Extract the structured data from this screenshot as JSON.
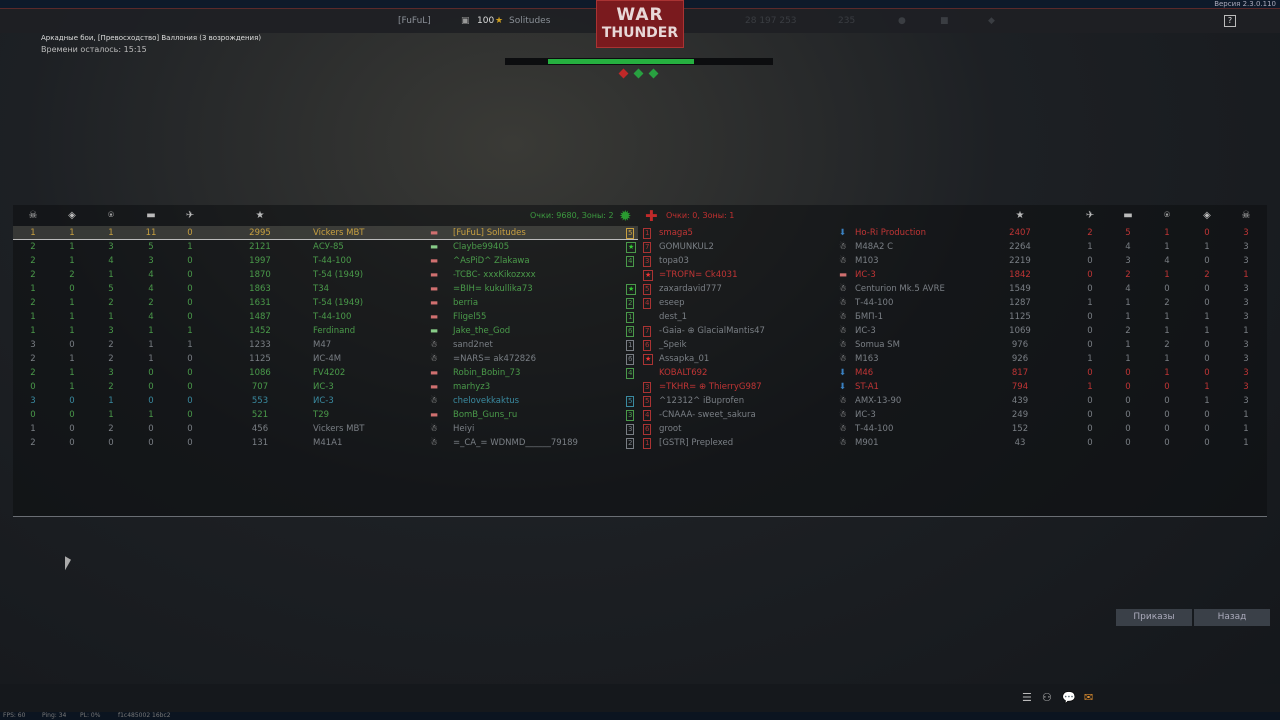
{
  "version": "Версия 2.3.0.110",
  "nav": {
    "squad": "[FuFuL]",
    "level": "100",
    "nick": "Solitudes",
    "silver": "28 197 253",
    "gold": "235",
    "help": "?"
  },
  "logo": {
    "line1": "WAR",
    "line2": "THUNDER"
  },
  "battle": {
    "mode": "Аркадные бои, [Превосходство] Валлония (3 возрождения)",
    "time_left": "Времени осталось: 15:15",
    "progress_percent": 68,
    "zones": [
      {
        "owner": "enemy",
        "color": "#c02828"
      },
      {
        "owner": "ally",
        "color": "#28a040"
      },
      {
        "owner": "ally",
        "color": "#28a040"
      }
    ]
  },
  "colors": {
    "ally": "#4a9a4a",
    "enemy": "#c03535",
    "self": "#c8a040",
    "dead": "#7a7f85",
    "squad": "#3a8aa0"
  },
  "headers": {
    "left": [
      "skull-icon",
      "capture-icon",
      "assist-icon",
      "ground-kill-icon",
      "air-kill-icon",
      "score-star-icon"
    ],
    "glyphs": [
      "☠",
      "◈",
      "⍟",
      "▬",
      "✈",
      "★"
    ]
  },
  "ally": {
    "summary": "Очки: 9680, Зоны: 2",
    "rows": [
      {
        "deaths": "1",
        "caps": "1",
        "assists": "1",
        "ground": "11",
        "air": "0",
        "score": "2995",
        "vehicle": "Vickers MBT",
        "status": "tank",
        "name": "[FuFuL] Solitudes",
        "rank": "5",
        "state": "self"
      },
      {
        "deaths": "2",
        "caps": "1",
        "assists": "3",
        "ground": "5",
        "air": "1",
        "score": "2121",
        "vehicle": "АСУ-85",
        "status": "tank-td",
        "name": "Claybe99405",
        "rank": "★",
        "state": "alive"
      },
      {
        "deaths": "2",
        "caps": "1",
        "assists": "4",
        "ground": "3",
        "air": "0",
        "score": "1997",
        "vehicle": "Т-44-100",
        "status": "tank",
        "name": "^AsPiD^ Zlakawa",
        "rank": "4",
        "state": "alive"
      },
      {
        "deaths": "2",
        "caps": "2",
        "assists": "1",
        "ground": "4",
        "air": "0",
        "score": "1870",
        "vehicle": "Т-54 (1949)",
        "status": "tank",
        "name": "-TCBC- xxxKikozxxx",
        "rank": "",
        "state": "alive"
      },
      {
        "deaths": "1",
        "caps": "0",
        "assists": "5",
        "ground": "4",
        "air": "0",
        "score": "1863",
        "vehicle": "Т34",
        "status": "tank",
        "name": "=BIH= kukullika73",
        "rank": "★",
        "state": "alive"
      },
      {
        "deaths": "2",
        "caps": "1",
        "assists": "2",
        "ground": "2",
        "air": "0",
        "score": "1631",
        "vehicle": "Т-54 (1949)",
        "status": "tank",
        "name": "berria",
        "rank": "2",
        "state": "alive"
      },
      {
        "deaths": "1",
        "caps": "1",
        "assists": "1",
        "ground": "4",
        "air": "0",
        "score": "1487",
        "vehicle": "Т-44-100",
        "status": "tank",
        "name": "Fligel55",
        "rank": "1",
        "state": "alive"
      },
      {
        "deaths": "1",
        "caps": "1",
        "assists": "3",
        "ground": "1",
        "air": "1",
        "score": "1452",
        "vehicle": "Ferdinand",
        "status": "tank-td",
        "name": "Jake_the_God",
        "rank": "6",
        "state": "alive"
      },
      {
        "deaths": "3",
        "caps": "0",
        "assists": "2",
        "ground": "1",
        "air": "1",
        "score": "1233",
        "vehicle": "M47",
        "status": "dead",
        "name": "sand2net",
        "rank": "1",
        "state": "dead"
      },
      {
        "deaths": "2",
        "caps": "1",
        "assists": "2",
        "ground": "1",
        "air": "0",
        "score": "1125",
        "vehicle": "ИС-4М",
        "status": "dead",
        "name": "=NARS= ak472826",
        "rank": "6",
        "state": "dead"
      },
      {
        "deaths": "2",
        "caps": "1",
        "assists": "3",
        "ground": "0",
        "air": "0",
        "score": "1086",
        "vehicle": "FV4202",
        "status": "tank",
        "name": "Robin_Bobin_73",
        "rank": "4",
        "state": "alive"
      },
      {
        "deaths": "0",
        "caps": "1",
        "assists": "2",
        "ground": "0",
        "air": "0",
        "score": "707",
        "vehicle": "ИС-3",
        "status": "tank",
        "name": "marhyz3",
        "rank": "",
        "state": "alive"
      },
      {
        "deaths": "3",
        "caps": "0",
        "assists": "1",
        "ground": "0",
        "air": "0",
        "score": "553",
        "vehicle": "ИС-3",
        "status": "dead",
        "name": "chelovekkaktus",
        "rank": "5",
        "state": "squad"
      },
      {
        "deaths": "0",
        "caps": "0",
        "assists": "1",
        "ground": "1",
        "air": "0",
        "score": "521",
        "vehicle": "T29",
        "status": "tank",
        "name": "BomB_Guns_ru",
        "rank": "3",
        "state": "alive"
      },
      {
        "deaths": "1",
        "caps": "0",
        "assists": "2",
        "ground": "0",
        "air": "0",
        "score": "456",
        "vehicle": "Vickers MBT",
        "status": "dead",
        "name": "Heiyi",
        "rank": "3",
        "state": "dead"
      },
      {
        "deaths": "2",
        "caps": "0",
        "assists": "0",
        "ground": "0",
        "air": "0",
        "score": "131",
        "vehicle": "M41A1",
        "status": "dead",
        "name": "=_CA_= WDNMD______79189",
        "rank": "2",
        "state": "dead"
      }
    ]
  },
  "enemy": {
    "summary": "Очки: 0, Зоны: 1",
    "rows": [
      {
        "rank": "1",
        "name": "smaga5",
        "status": "parachute",
        "vehicle": "Ho-Ri Production",
        "score": "2407",
        "air": "2",
        "ground": "5",
        "assists": "1",
        "caps": "0",
        "deaths": "3",
        "state": "alive"
      },
      {
        "rank": "7",
        "name": "GOMUNKUL2",
        "status": "dead",
        "vehicle": "M48A2 C",
        "score": "2264",
        "air": "1",
        "ground": "4",
        "assists": "1",
        "caps": "1",
        "deaths": "3",
        "state": "dead"
      },
      {
        "rank": "3",
        "name": "topa03",
        "status": "dead",
        "vehicle": "M103",
        "score": "2219",
        "air": "0",
        "ground": "3",
        "assists": "4",
        "caps": "0",
        "deaths": "3",
        "state": "dead"
      },
      {
        "rank": "★",
        "name": "=TROFN= Ck4031",
        "status": "tank",
        "vehicle": "ИС-3",
        "score": "1842",
        "air": "0",
        "ground": "2",
        "assists": "1",
        "caps": "2",
        "deaths": "1",
        "state": "alive"
      },
      {
        "rank": "5",
        "name": "zaxardavid777",
        "status": "dead",
        "vehicle": "Centurion Mk.5 AVRE",
        "score": "1549",
        "air": "0",
        "ground": "4",
        "assists": "0",
        "caps": "0",
        "deaths": "3",
        "state": "dead"
      },
      {
        "rank": "4",
        "name": "eseep",
        "status": "dead",
        "vehicle": "Т-44-100",
        "score": "1287",
        "air": "1",
        "ground": "1",
        "assists": "2",
        "caps": "0",
        "deaths": "3",
        "state": "dead"
      },
      {
        "rank": "",
        "name": "dest_1",
        "status": "dead",
        "vehicle": "БМП-1",
        "score": "1125",
        "air": "0",
        "ground": "1",
        "assists": "1",
        "caps": "1",
        "deaths": "3",
        "state": "dead"
      },
      {
        "rank": "7",
        "name": "-Gaia- ⊕ GlacialMantis47",
        "status": "dead",
        "vehicle": "ИС-3",
        "score": "1069",
        "air": "0",
        "ground": "2",
        "assists": "1",
        "caps": "1",
        "deaths": "1",
        "state": "dead"
      },
      {
        "rank": "6",
        "name": "_Speik",
        "status": "dead",
        "vehicle": "Somua SM",
        "score": "976",
        "air": "0",
        "ground": "1",
        "assists": "2",
        "caps": "0",
        "deaths": "3",
        "state": "dead"
      },
      {
        "rank": "★",
        "name": "Assapka_01",
        "status": "dead",
        "vehicle": "M163",
        "score": "926",
        "air": "1",
        "ground": "1",
        "assists": "1",
        "caps": "0",
        "deaths": "3",
        "state": "dead"
      },
      {
        "rank": "",
        "name": "KOBALT692",
        "status": "parachute",
        "vehicle": "M46",
        "score": "817",
        "air": "0",
        "ground": "0",
        "assists": "1",
        "caps": "0",
        "deaths": "3",
        "state": "alive"
      },
      {
        "rank": "3",
        "name": "=TKHR= ⊕ ThierryG987",
        "status": "parachute",
        "vehicle": "ST-A1",
        "score": "794",
        "air": "1",
        "ground": "0",
        "assists": "0",
        "caps": "1",
        "deaths": "3",
        "state": "alive"
      },
      {
        "rank": "5",
        "name": "^12312^ iBuprofen",
        "status": "dead",
        "vehicle": "AMX-13-90",
        "score": "439",
        "air": "0",
        "ground": "0",
        "assists": "0",
        "caps": "1",
        "deaths": "3",
        "state": "dead"
      },
      {
        "rank": "4",
        "name": "-CNAAA- sweet_sakura",
        "status": "dead",
        "vehicle": "ИС-3",
        "score": "249",
        "air": "0",
        "ground": "0",
        "assists": "0",
        "caps": "0",
        "deaths": "1",
        "state": "dead"
      },
      {
        "rank": "6",
        "name": "groot",
        "status": "dead",
        "vehicle": "Т-44-100",
        "score": "152",
        "air": "0",
        "ground": "0",
        "assists": "0",
        "caps": "0",
        "deaths": "1",
        "state": "dead"
      },
      {
        "rank": "1",
        "name": "[GSTR] Preplexed",
        "status": "dead",
        "vehicle": "M901",
        "score": "43",
        "air": "0",
        "ground": "0",
        "assists": "0",
        "caps": "0",
        "deaths": "1",
        "state": "dead"
      }
    ]
  },
  "buttons": {
    "orders": "Приказы",
    "back": "Назад"
  },
  "status_bar": {
    "fps": "FPS: 60",
    "ping": "Ping: 34",
    "pl": "PL: 0%",
    "session": "f1c485002 16bc2"
  }
}
